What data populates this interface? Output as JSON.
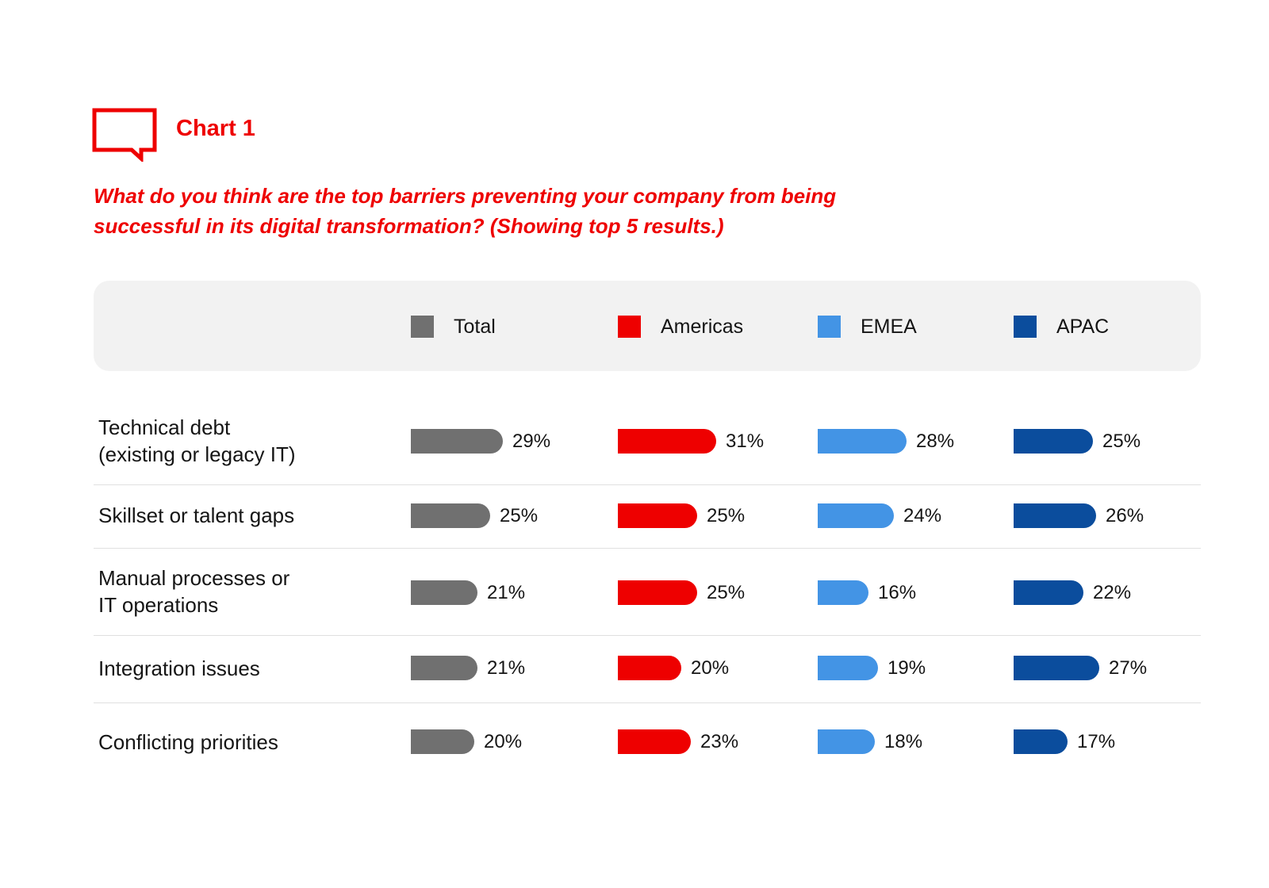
{
  "header": {
    "chart_label": "Chart 1",
    "question_line1": "What do you think are the top barriers preventing your company from being",
    "question_line2": "successful in its digital transformation? (Showing top 5 results.)"
  },
  "icons": {
    "header_icon": "speech-bubble-icon"
  },
  "colors": {
    "accent": "#ee0000",
    "Total": "#707070",
    "Americas": "#ee0000",
    "EMEA": "#4394e5",
    "APAC": "#0b4d9d"
  },
  "chart_data": {
    "type": "bar",
    "orientation": "horizontal",
    "title": "What do you think are the top barriers preventing your company from being successful in its digital transformation? (Showing top 5 results.)",
    "unit": "%",
    "legend_position": "top",
    "categories": [
      "Technical debt (existing or legacy IT)",
      "Skillset or talent gaps",
      "Manual processes or IT operations",
      "Integration issues",
      "Conflicting priorities"
    ],
    "category_lines": [
      [
        "Technical debt",
        "(existing or legacy IT)"
      ],
      [
        "Skillset or talent gaps"
      ],
      [
        "Manual processes or",
        "IT operations"
      ],
      [
        "Integration issues"
      ],
      [
        "Conflicting priorities"
      ]
    ],
    "series": [
      {
        "name": "Total",
        "color": "#707070",
        "values": [
          29,
          25,
          21,
          21,
          20
        ],
        "labels": [
          "29%",
          "25%",
          "21%",
          "21%",
          "20%"
        ]
      },
      {
        "name": "Americas",
        "color": "#ee0000",
        "values": [
          31,
          25,
          25,
          20,
          23
        ],
        "labels": [
          "31%",
          "25%",
          "25%",
          "20%",
          "23%"
        ]
      },
      {
        "name": "EMEA",
        "color": "#4394e5",
        "values": [
          28,
          24,
          16,
          19,
          18
        ],
        "labels": [
          "28%",
          "24%",
          "16%",
          "19%",
          "18%"
        ]
      },
      {
        "name": "APAC",
        "color": "#0b4d9d",
        "values": [
          25,
          26,
          22,
          27,
          17
        ],
        "labels": [
          "25%",
          "26%",
          "22%",
          "27%",
          "17%"
        ]
      }
    ]
  }
}
